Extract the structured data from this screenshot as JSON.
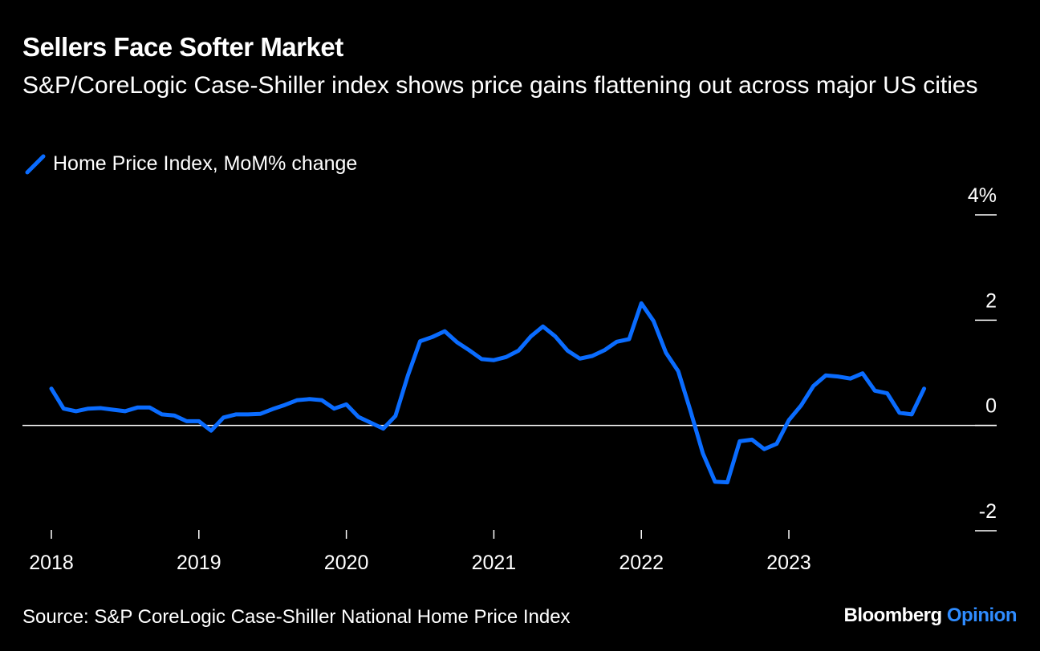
{
  "colors": {
    "background": "#000000",
    "line": "#0a6cff",
    "axis": "#ffffff",
    "brand_accent": "#2f8cff"
  },
  "header": {
    "title": "Sellers Face Softer Market",
    "subtitle": "S&P/CoreLogic Case-Shiller index shows price gains flattening out across major US cities"
  },
  "footer": {
    "source": "Source: S&P CoreLogic Case-Shiller National Home Price Index",
    "brand": "Bloomberg",
    "brand_accent": "Opinion"
  },
  "chart_data": {
    "type": "line",
    "title": "Sellers Face Softer Market",
    "legend": [
      "Home Price Index, MoM% change"
    ],
    "ylim": [
      -2,
      4
    ],
    "y_ticks": [
      {
        "value": 4,
        "label": "4%"
      },
      {
        "value": 2,
        "label": "2"
      },
      {
        "value": 0,
        "label": "0"
      },
      {
        "value": -2,
        "label": "-2"
      }
    ],
    "x_ticks": [
      {
        "value": 2018.0,
        "label": "2018"
      },
      {
        "value": 2019.0,
        "label": "2019"
      },
      {
        "value": 2020.0,
        "label": "2020"
      },
      {
        "value": 2021.0,
        "label": "2021"
      },
      {
        "value": 2022.0,
        "label": "2022"
      },
      {
        "value": 2023.0,
        "label": "2023"
      }
    ],
    "xlim": [
      2018.0,
      2023.99
    ],
    "series": [
      {
        "name": "Home Price Index, MoM% change",
        "x": [
          2018.0,
          2018.083,
          2018.167,
          2018.25,
          2018.333,
          2018.417,
          2018.5,
          2018.583,
          2018.667,
          2018.75,
          2018.833,
          2018.917,
          2019.0,
          2019.083,
          2019.167,
          2019.25,
          2019.333,
          2019.417,
          2019.5,
          2019.583,
          2019.667,
          2019.75,
          2019.833,
          2019.917,
          2020.0,
          2020.083,
          2020.167,
          2020.25,
          2020.333,
          2020.417,
          2020.5,
          2020.583,
          2020.667,
          2020.75,
          2020.833,
          2020.917,
          2021.0,
          2021.083,
          2021.167,
          2021.25,
          2021.333,
          2021.417,
          2021.5,
          2021.583,
          2021.667,
          2021.75,
          2021.833,
          2021.917,
          2022.0,
          2022.083,
          2022.167,
          2022.25,
          2022.333,
          2022.417,
          2022.5,
          2022.583,
          2022.667,
          2022.75,
          2022.833,
          2022.917,
          2023.0,
          2023.083,
          2023.167,
          2023.25,
          2023.333,
          2023.417,
          2023.5,
          2023.583,
          2023.667,
          2023.75,
          2023.833,
          2023.917
        ],
        "values": [
          0.7,
          0.32,
          0.27,
          0.32,
          0.33,
          0.3,
          0.27,
          0.34,
          0.34,
          0.21,
          0.19,
          0.08,
          0.08,
          -0.1,
          0.15,
          0.21,
          0.21,
          0.22,
          0.31,
          0.39,
          0.48,
          0.5,
          0.48,
          0.32,
          0.4,
          0.16,
          0.05,
          -0.06,
          0.18,
          0.95,
          1.6,
          1.68,
          1.79,
          1.58,
          1.43,
          1.26,
          1.24,
          1.3,
          1.42,
          1.69,
          1.88,
          1.69,
          1.42,
          1.27,
          1.32,
          1.43,
          1.59,
          1.64,
          2.32,
          1.98,
          1.38,
          1.03,
          0.28,
          -0.53,
          -1.07,
          -1.08,
          -0.3,
          -0.27,
          -0.45,
          -0.35,
          0.1,
          0.38,
          0.75,
          0.95,
          0.93,
          0.89,
          0.99,
          0.66,
          0.61,
          0.24,
          0.21,
          0.7
        ]
      }
    ]
  }
}
